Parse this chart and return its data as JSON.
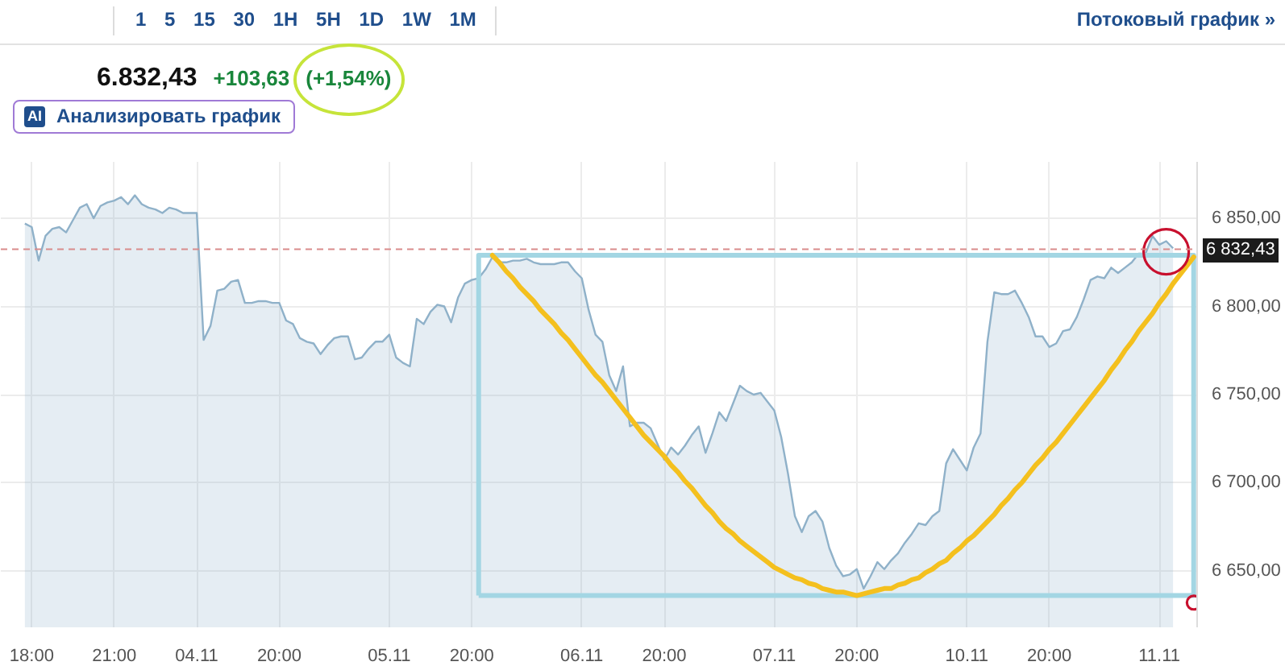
{
  "chart_data": {
    "type": "area",
    "annotations": [
      "1 5 15 30 1H 5H 1D 1W 1M",
      "Потоковый график »",
      "6.832,43",
      "+103,63",
      "(+1,54%)",
      "AI",
      "Анализировать график"
    ],
    "ylim": [
      6618,
      6882
    ],
    "yticks": [
      {
        "value": 6650,
        "label": "6 650,00"
      },
      {
        "value": 6700,
        "label": "6 700,00"
      },
      {
        "value": 6750,
        "label": "6 750,00"
      },
      {
        "value": 6800,
        "label": "6 800,00"
      },
      {
        "value": 6850,
        "label": "6 850,00"
      }
    ],
    "grid": true,
    "ref_lines": [
      {
        "axis": "y",
        "value": 6832.43,
        "label": "6 832,43",
        "color": "#d98c8c",
        "line_style": "dashed"
      }
    ],
    "categories": [
      null,
      null,
      null,
      null,
      "18:00",
      null,
      null,
      null,
      null,
      null,
      null,
      null,
      null,
      null,
      null,
      null,
      "21:00",
      null,
      null,
      null,
      null,
      null,
      null,
      null,
      null,
      null,
      null,
      null,
      "04.11",
      null,
      null,
      null,
      null,
      null,
      null,
      null,
      null,
      null,
      null,
      null,
      "20:00",
      null,
      null,
      null,
      null,
      null,
      null,
      null,
      null,
      null,
      null,
      null,
      null,
      null,
      null,
      null,
      "05.11",
      null,
      null,
      null,
      null,
      null,
      null,
      null,
      null,
      null,
      null,
      null,
      "20:00",
      null,
      null,
      null,
      null,
      null,
      null,
      null,
      null,
      null,
      null,
      null,
      null,
      null,
      null,
      null,
      "06.11",
      null,
      null,
      null,
      null,
      null,
      null,
      null,
      null,
      null,
      null,
      null,
      "20:00",
      null,
      null,
      null,
      null,
      null,
      null,
      null,
      null,
      null,
      null,
      null,
      null,
      null,
      null,
      null,
      "07.11",
      null,
      null,
      null,
      null,
      null,
      null,
      null,
      null,
      null,
      null,
      null,
      "20:00",
      null,
      null,
      null,
      null,
      null,
      null,
      null,
      null,
      null,
      null,
      null,
      null,
      null,
      null,
      null,
      "10.11",
      null,
      null,
      null,
      null,
      null,
      null,
      null,
      null,
      null,
      null,
      null,
      "20:00",
      null,
      null,
      null,
      null,
      null,
      null,
      null,
      null,
      null,
      null,
      null,
      null,
      null,
      null,
      null,
      "11.11",
      null,
      null,
      null,
      null,
      null
    ],
    "series": [
      {
        "color": "#8fb1c9",
        "values": [
          null,
          null,
          null,
          6847,
          6845,
          6826,
          6840,
          6844,
          6845,
          6842,
          6849,
          6856,
          6858,
          6850,
          6857,
          6859,
          6860,
          6862,
          6858,
          6863,
          6858,
          6856,
          6855,
          6853,
          6856,
          6855,
          6853,
          6853,
          6853,
          6781,
          6789,
          6809,
          6810,
          6814,
          6815,
          6802,
          6802,
          6803,
          6803,
          6802,
          6802,
          6792,
          6790,
          6782,
          6780,
          6779,
          6773,
          6778,
          6782,
          6783,
          6783,
          6770,
          6771,
          6776,
          6780,
          6780,
          6784,
          6771,
          6768,
          6766,
          6793,
          6790,
          6797,
          6801,
          6800,
          6791,
          6805,
          6813,
          6815,
          6816,
          6821,
          6828,
          6825,
          6825,
          6826,
          6826,
          6827,
          6825,
          6824,
          6824,
          6824,
          6825,
          6825,
          6820,
          6816,
          6798,
          6784,
          6780,
          6761,
          6752,
          6766,
          6732,
          6734,
          6734,
          6731,
          6722,
          6713,
          6720,
          6716,
          6721,
          6727,
          6732,
          6717,
          6728,
          6740,
          6735,
          6745,
          6755,
          6752,
          6750,
          6751,
          6746,
          6741,
          6726,
          6705,
          6681,
          6672,
          6681,
          6684,
          6678,
          6663,
          6653,
          6647,
          6648,
          6651,
          6640,
          6647,
          6655,
          6651,
          6656,
          6660,
          6666,
          6671,
          6677,
          6676,
          6681,
          6684,
          6711,
          6719,
          6713,
          6707,
          6720,
          6728,
          6780,
          6808,
          6807,
          6807,
          6809,
          6802,
          6794,
          6783,
          6783,
          6777,
          6779,
          6786,
          6787,
          6794,
          6804,
          6815,
          6817,
          6816,
          6822,
          6819,
          6822,
          6825,
          6830,
          6830,
          6840,
          6835,
          6837,
          6833,
          null,
          null,
          null
        ]
      },
      {
        "type": "line",
        "color": "#f4c01e",
        "values": [
          null,
          null,
          null,
          null,
          null,
          null,
          null,
          null,
          null,
          null,
          null,
          null,
          null,
          null,
          null,
          null,
          null,
          null,
          null,
          null,
          null,
          null,
          null,
          null,
          null,
          null,
          null,
          null,
          null,
          null,
          null,
          null,
          null,
          null,
          null,
          null,
          null,
          null,
          null,
          null,
          null,
          null,
          null,
          null,
          null,
          null,
          null,
          null,
          null,
          null,
          null,
          null,
          null,
          null,
          null,
          null,
          null,
          null,
          null,
          null,
          null,
          null,
          null,
          null,
          null,
          null,
          null,
          null,
          null,
          null,
          null,
          6829,
          6825,
          6820,
          6816,
          6811,
          6807,
          6803,
          6798,
          6794,
          6790,
          6785,
          6781,
          6776,
          6771,
          6766,
          6761,
          6757,
          6752,
          6747,
          6742,
          6737,
          6732,
          6727,
          6723,
          6719,
          6715,
          6710,
          6706,
          6701,
          6697,
          6692,
          6687,
          6683,
          6678,
          6674,
          6671,
          6667,
          6664,
          6661,
          6658,
          6655,
          6652,
          6650,
          6648,
          6646,
          6645,
          6643,
          6642,
          6640,
          6639,
          6638,
          6638,
          6637,
          6636,
          6637,
          6638,
          6639,
          6640,
          6640,
          6642,
          6643,
          6645,
          6646,
          6649,
          6651,
          6654,
          6656,
          6660,
          6663,
          6667,
          6670,
          6674,
          6678,
          6682,
          6687,
          6691,
          6696,
          6700,
          6705,
          6710,
          6714,
          6719,
          6723,
          6728,
          6733,
          6738,
          6743,
          6748,
          6753,
          6758,
          6764,
          6769,
          6775,
          6780,
          6786,
          6791,
          6796,
          6802,
          6807,
          6813,
          6818,
          6823,
          6828
        ]
      },
      {
        "type": "bubble",
        "color": "#c8102e",
        "values": [
          null,
          null,
          null,
          null,
          null,
          null,
          null,
          null,
          null,
          null,
          null,
          null,
          null,
          null,
          null,
          null,
          null,
          null,
          null,
          null,
          null,
          null,
          null,
          null,
          null,
          null,
          null,
          null,
          null,
          null,
          null,
          null,
          null,
          null,
          null,
          null,
          null,
          null,
          null,
          null,
          null,
          null,
          null,
          null,
          null,
          null,
          null,
          null,
          null,
          null,
          null,
          null,
          null,
          null,
          null,
          null,
          null,
          null,
          null,
          null,
          null,
          null,
          null,
          null,
          null,
          null,
          null,
          null,
          null,
          null,
          null,
          null,
          null,
          null,
          null,
          null,
          null,
          null,
          null,
          null,
          null,
          null,
          null,
          null,
          null,
          null,
          null,
          null,
          null,
          null,
          null,
          null,
          null,
          null,
          null,
          null,
          null,
          null,
          null,
          null,
          null,
          null,
          null,
          null,
          null,
          null,
          null,
          null,
          null,
          null,
          null,
          null,
          null,
          null,
          null,
          null,
          null,
          null,
          null,
          null,
          null,
          null,
          null,
          null,
          null,
          null,
          null,
          null,
          null,
          null,
          null,
          null,
          null,
          null,
          null,
          null,
          null,
          null,
          null,
          null,
          null,
          null,
          null,
          null,
          null,
          null,
          null,
          null,
          null,
          null,
          null,
          null,
          null,
          null,
          null,
          null,
          null,
          null,
          null,
          null,
          null,
          null,
          null,
          null,
          null,
          null,
          null,
          null,
          null,
          6831,
          null,
          null,
          null,
          6632
        ],
        "sizes": [
          null,
          null,
          null,
          null,
          null,
          null,
          null,
          null,
          null,
          null,
          null,
          null,
          null,
          null,
          null,
          null,
          null,
          null,
          null,
          null,
          null,
          null,
          null,
          null,
          null,
          null,
          null,
          null,
          null,
          null,
          null,
          null,
          null,
          null,
          null,
          null,
          null,
          null,
          null,
          null,
          null,
          null,
          null,
          null,
          null,
          null,
          null,
          null,
          null,
          null,
          null,
          null,
          null,
          null,
          null,
          null,
          null,
          null,
          null,
          null,
          null,
          null,
          null,
          null,
          null,
          null,
          null,
          null,
          null,
          null,
          null,
          null,
          null,
          null,
          null,
          null,
          null,
          null,
          null,
          null,
          null,
          null,
          null,
          null,
          null,
          null,
          null,
          null,
          null,
          null,
          null,
          null,
          null,
          null,
          null,
          null,
          null,
          null,
          null,
          null,
          null,
          null,
          null,
          null,
          null,
          null,
          null,
          null,
          null,
          null,
          null,
          null,
          null,
          null,
          null,
          null,
          null,
          null,
          null,
          null,
          null,
          null,
          null,
          null,
          null,
          null,
          null,
          null,
          null,
          null,
          null,
          null,
          null,
          null,
          null,
          null,
          null,
          null,
          null,
          null,
          null,
          null,
          null,
          null,
          null,
          null,
          null,
          null,
          null,
          null,
          null,
          null,
          null,
          null,
          null,
          null,
          null,
          null,
          null,
          null,
          null,
          null,
          null,
          null,
          null,
          null,
          null,
          null,
          null,
          1,
          null,
          null,
          null,
          0.09
        ]
      }
    ]
  }
}
